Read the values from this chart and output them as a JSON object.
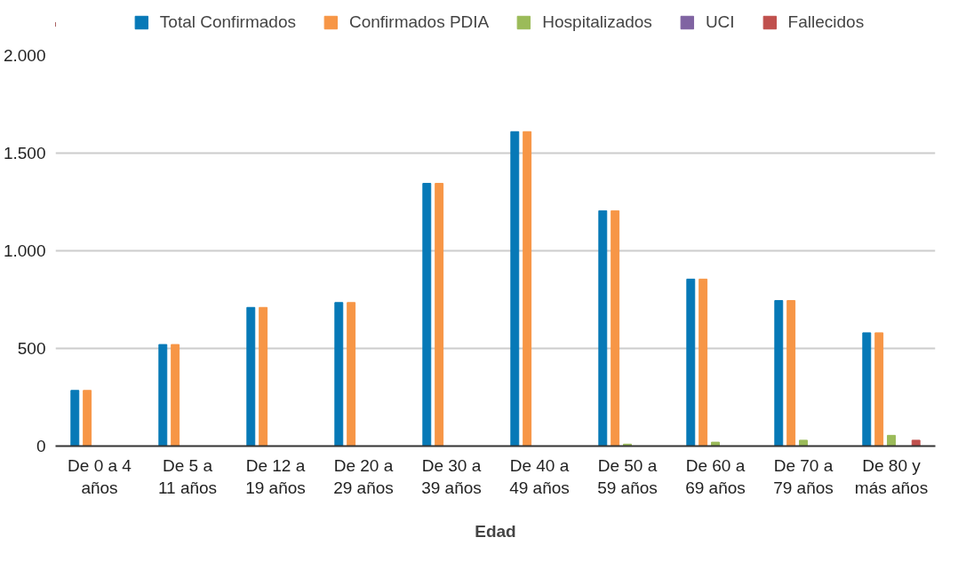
{
  "chart_data": {
    "type": "bar",
    "xlabel": "Edad",
    "categories": [
      "De 0 a 4 años",
      "De 5 a 11 años",
      "De 12 a 19 años",
      "De 20 a 29 años",
      "De 30 a 39 años",
      "De 40 a 49 años",
      "De 50 a 59 años",
      "De 60 a 69 años",
      "De 70 a 79 años",
      "De 80 y más años"
    ],
    "series": [
      {
        "name": "Total Confirmados",
        "color": "#0779b7",
        "values": [
          285,
          520,
          710,
          735,
          1345,
          1610,
          1205,
          855,
          745,
          580
        ]
      },
      {
        "name": "Confirmados PDIA",
        "color": "#f79646",
        "values": [
          285,
          520,
          710,
          735,
          1345,
          1610,
          1205,
          855,
          745,
          580
        ]
      },
      {
        "name": "Hospitalizados",
        "color": "#9bbb59",
        "values": [
          0,
          0,
          0,
          0,
          0,
          0,
          10,
          20,
          30,
          55
        ]
      },
      {
        "name": "UCI",
        "color": "#8064a2",
        "values": [
          0,
          0,
          0,
          0,
          0,
          0,
          0,
          0,
          0,
          0
        ]
      },
      {
        "name": "Fallecidos",
        "color": "#c0504d",
        "values": [
          0,
          0,
          0,
          0,
          0,
          0,
          0,
          0,
          0,
          30
        ]
      }
    ],
    "ylim": [
      0,
      2000
    ],
    "yticks": [
      0,
      500,
      {
        "value": 1000,
        "label": "1.000"
      },
      {
        "value": 1500,
        "label": "1.500"
      },
      {
        "value": 2000,
        "label": "2.000"
      }
    ],
    "grid": "y",
    "legend": "top"
  }
}
